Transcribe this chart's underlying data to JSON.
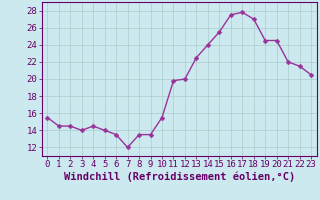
{
  "x": [
    0,
    1,
    2,
    3,
    4,
    5,
    6,
    7,
    8,
    9,
    10,
    11,
    12,
    13,
    14,
    15,
    16,
    17,
    18,
    19,
    20,
    21,
    22,
    23
  ],
  "y": [
    15.5,
    14.5,
    14.5,
    14.0,
    14.5,
    14.0,
    13.5,
    12.0,
    13.5,
    13.5,
    15.5,
    19.8,
    20.0,
    22.5,
    24.0,
    25.5,
    27.5,
    27.8,
    27.0,
    24.5,
    24.5,
    22.0,
    21.5,
    20.5
  ],
  "line_color": "#993399",
  "marker_color": "#993399",
  "bg_color": "#cce9f0",
  "grid_color": "#aacccc",
  "xlabel": "Windchill (Refroidissement éolien,°C)",
  "ylim": [
    11,
    29
  ],
  "xlim": [
    -0.5,
    23.5
  ],
  "yticks": [
    12,
    14,
    16,
    18,
    20,
    22,
    24,
    26,
    28
  ],
  "xticks": [
    0,
    1,
    2,
    3,
    4,
    5,
    6,
    7,
    8,
    9,
    10,
    11,
    12,
    13,
    14,
    15,
    16,
    17,
    18,
    19,
    20,
    21,
    22,
    23
  ],
  "tick_label_color": "#660066",
  "tick_label_fontsize": 6.5,
  "xlabel_fontsize": 7.5,
  "xlabel_color": "#660066",
  "spine_color": "#660066",
  "marker_size": 2.5,
  "linewidth": 1.0
}
